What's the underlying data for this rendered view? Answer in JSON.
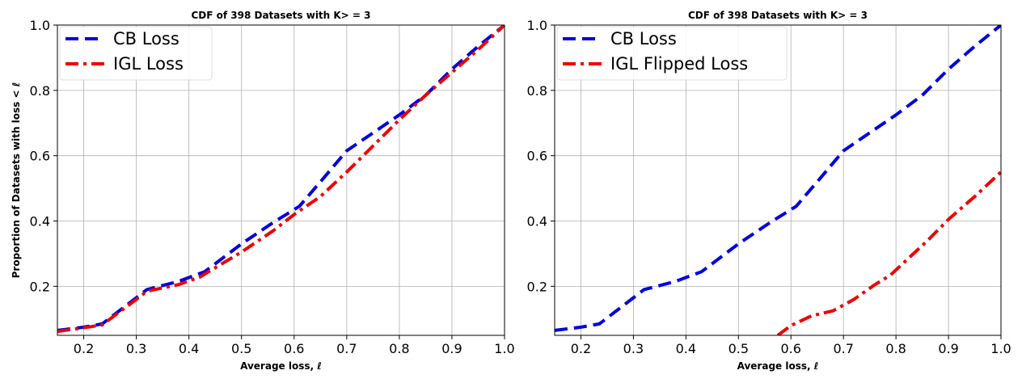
{
  "chart_data": [
    {
      "type": "line",
      "title": "CDF of 398 Datasets with K> = 3",
      "xlabel": "Average loss,  ℓ",
      "ylabel": "Proportion of Datasets with loss < ℓ",
      "xlim": [
        0.15,
        1.0
      ],
      "ylim": [
        0.05,
        1.0
      ],
      "xticks": [
        "0.2",
        "0.3",
        "0.4",
        "0.5",
        "0.6",
        "0.7",
        "0.8",
        "0.9",
        "1.0"
      ],
      "xtick_values": [
        0.2,
        0.3,
        0.4,
        0.5,
        0.6,
        0.7,
        0.8,
        0.9,
        1.0
      ],
      "yticks": [
        "0.2",
        "0.4",
        "0.6",
        "0.8",
        "1.0"
      ],
      "ytick_values": [
        0.2,
        0.4,
        0.6,
        0.8,
        1.0
      ],
      "grid": true,
      "legend_position": "top-left",
      "series": [
        {
          "name": "CB Loss",
          "color": "#0000dd",
          "style": "dashed",
          "x": [
            0.15,
            0.2,
            0.235,
            0.3,
            0.32,
            0.38,
            0.43,
            0.5,
            0.56,
            0.61,
            0.65,
            0.7,
            0.75,
            0.8,
            0.85,
            0.9,
            0.95,
            1.0
          ],
          "y": [
            0.065,
            0.075,
            0.085,
            0.165,
            0.19,
            0.215,
            0.245,
            0.33,
            0.395,
            0.445,
            0.52,
            0.615,
            0.67,
            0.725,
            0.785,
            0.865,
            0.935,
            1.0
          ]
        },
        {
          "name": "IGL Loss",
          "color": "#ee0000",
          "style": "dashdot",
          "x": [
            0.15,
            0.2,
            0.235,
            0.3,
            0.32,
            0.38,
            0.42,
            0.5,
            0.56,
            0.6,
            0.65,
            0.7,
            0.75,
            0.8,
            0.85,
            0.9,
            0.95,
            1.0
          ],
          "y": [
            0.062,
            0.073,
            0.082,
            0.16,
            0.185,
            0.205,
            0.228,
            0.305,
            0.37,
            0.42,
            0.475,
            0.55,
            0.63,
            0.71,
            0.785,
            0.855,
            0.925,
            1.0
          ]
        }
      ]
    },
    {
      "type": "line",
      "title": "CDF of 398 Datasets with K> = 3",
      "xlabel": "Average loss,  ℓ",
      "ylabel": "",
      "xlim": [
        0.15,
        1.0
      ],
      "ylim": [
        0.05,
        1.0
      ],
      "xticks": [
        "0.2",
        "0.3",
        "0.4",
        "0.5",
        "0.6",
        "0.7",
        "0.8",
        "0.9",
        "1.0"
      ],
      "xtick_values": [
        0.2,
        0.3,
        0.4,
        0.5,
        0.6,
        0.7,
        0.8,
        0.9,
        1.0
      ],
      "yticks": [
        "0.2",
        "0.4",
        "0.6",
        "0.8",
        "1.0"
      ],
      "ytick_values": [
        0.2,
        0.4,
        0.6,
        0.8,
        1.0
      ],
      "grid": true,
      "legend_position": "top-left",
      "series": [
        {
          "name": "CB Loss",
          "color": "#0000dd",
          "style": "dashed",
          "x": [
            0.15,
            0.2,
            0.235,
            0.3,
            0.32,
            0.38,
            0.43,
            0.5,
            0.56,
            0.61,
            0.65,
            0.7,
            0.75,
            0.8,
            0.85,
            0.9,
            0.95,
            1.0
          ],
          "y": [
            0.065,
            0.075,
            0.085,
            0.165,
            0.19,
            0.215,
            0.245,
            0.33,
            0.395,
            0.445,
            0.52,
            0.615,
            0.67,
            0.725,
            0.785,
            0.865,
            0.935,
            1.0
          ]
        },
        {
          "name": "IGL Flipped Loss",
          "color": "#ee0000",
          "style": "dashdot",
          "x": [
            0.575,
            0.6,
            0.64,
            0.68,
            0.72,
            0.76,
            0.79,
            0.82,
            0.86,
            0.9,
            0.95,
            1.0
          ],
          "y": [
            0.05,
            0.08,
            0.11,
            0.125,
            0.16,
            0.205,
            0.235,
            0.28,
            0.34,
            0.405,
            0.475,
            0.55
          ]
        }
      ]
    }
  ]
}
